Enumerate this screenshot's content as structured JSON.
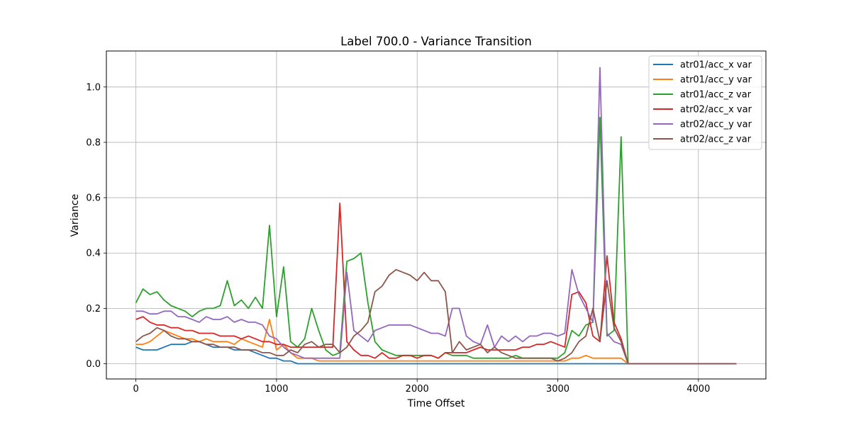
{
  "chart_data": {
    "type": "line",
    "title": "Label 700.0 - Variance Transition",
    "xlabel": "Time Offset",
    "ylabel": "Variance",
    "xlim": [
      -210,
      4480
    ],
    "ylim": [
      -0.055,
      1.13
    ],
    "xticks": [
      0,
      1000,
      2000,
      3000,
      4000
    ],
    "xtick_labels": [
      "0",
      "1000",
      "2000",
      "3000",
      "4000"
    ],
    "yticks": [
      0.0,
      0.2,
      0.4,
      0.6,
      0.8,
      1.0
    ],
    "ytick_labels": [
      "0.0",
      "0.2",
      "0.4",
      "0.6",
      "0.8",
      "1.0"
    ],
    "grid": true,
    "legend_position": "top-right",
    "x": [
      0,
      50,
      100,
      150,
      200,
      250,
      300,
      350,
      400,
      450,
      500,
      550,
      600,
      650,
      700,
      750,
      800,
      850,
      900,
      950,
      1000,
      1050,
      1100,
      1150,
      1200,
      1250,
      1300,
      1350,
      1400,
      1450,
      1500,
      1550,
      1600,
      1650,
      1700,
      1750,
      1800,
      1850,
      1900,
      1950,
      2000,
      2050,
      2100,
      2150,
      2200,
      2250,
      2300,
      2350,
      2400,
      2450,
      2500,
      2550,
      2600,
      2650,
      2700,
      2750,
      2800,
      2850,
      2900,
      2950,
      3000,
      3050,
      3100,
      3150,
      3200,
      3250,
      3300,
      3350,
      3400,
      3450,
      3500,
      3600,
      3700,
      3800,
      3900,
      4000,
      4100,
      4200,
      4270
    ],
    "series": [
      {
        "name": "atr01/acc_x var",
        "color": "#1f77b4",
        "values": [
          0.06,
          0.05,
          0.05,
          0.05,
          0.06,
          0.07,
          0.07,
          0.07,
          0.08,
          0.08,
          0.07,
          0.06,
          0.06,
          0.06,
          0.05,
          0.05,
          0.05,
          0.04,
          0.03,
          0.02,
          0.02,
          0.01,
          0.01,
          0.0,
          0.0,
          0.0,
          0.0,
          0.0,
          0.0,
          0.0,
          0.0,
          0.0,
          0.0,
          0.0,
          0.0,
          0.0,
          0.0,
          0.0,
          0.0,
          0.0,
          0.0,
          0.0,
          0.0,
          0.0,
          0.0,
          0.0,
          0.0,
          0.0,
          0.0,
          0.0,
          0.0,
          0.0,
          0.0,
          0.0,
          0.0,
          0.0,
          0.0,
          0.0,
          0.0,
          0.0,
          0.0,
          0.0,
          0.0,
          0.0,
          0.0,
          0.0,
          0.0,
          0.0,
          0.0,
          0.0,
          0.0,
          0.0,
          0.0,
          0.0,
          0.0,
          0.0,
          0.0,
          0.0,
          0.0
        ]
      },
      {
        "name": "atr01/acc_y var",
        "color": "#ff7f0e",
        "values": [
          0.07,
          0.07,
          0.08,
          0.1,
          0.12,
          0.11,
          0.1,
          0.09,
          0.09,
          0.08,
          0.09,
          0.08,
          0.08,
          0.08,
          0.07,
          0.09,
          0.08,
          0.07,
          0.06,
          0.16,
          0.05,
          0.07,
          0.04,
          0.02,
          0.02,
          0.02,
          0.01,
          0.01,
          0.01,
          0.01,
          0.01,
          0.01,
          0.01,
          0.01,
          0.01,
          0.01,
          0.01,
          0.01,
          0.01,
          0.01,
          0.01,
          0.01,
          0.01,
          0.01,
          0.01,
          0.01,
          0.01,
          0.01,
          0.01,
          0.01,
          0.01,
          0.01,
          0.01,
          0.01,
          0.01,
          0.01,
          0.01,
          0.01,
          0.01,
          0.01,
          0.01,
          0.01,
          0.02,
          0.02,
          0.03,
          0.02,
          0.02,
          0.02,
          0.02,
          0.02,
          0.0,
          0.0,
          0.0,
          0.0,
          0.0,
          0.0,
          0.0,
          0.0,
          0.0
        ]
      },
      {
        "name": "atr01/acc_z var",
        "color": "#2ca02c",
        "values": [
          0.22,
          0.27,
          0.25,
          0.26,
          0.23,
          0.21,
          0.2,
          0.19,
          0.17,
          0.19,
          0.2,
          0.2,
          0.21,
          0.3,
          0.21,
          0.23,
          0.2,
          0.24,
          0.2,
          0.5,
          0.17,
          0.35,
          0.08,
          0.06,
          0.09,
          0.2,
          0.12,
          0.05,
          0.03,
          0.04,
          0.37,
          0.38,
          0.4,
          0.22,
          0.08,
          0.05,
          0.04,
          0.03,
          0.03,
          0.03,
          0.03,
          0.03,
          0.03,
          0.02,
          0.04,
          0.03,
          0.03,
          0.03,
          0.02,
          0.02,
          0.02,
          0.02,
          0.02,
          0.02,
          0.03,
          0.02,
          0.02,
          0.02,
          0.02,
          0.02,
          0.02,
          0.04,
          0.12,
          0.1,
          0.14,
          0.15,
          0.89,
          0.1,
          0.12,
          0.82,
          0.0,
          0.0,
          0.0,
          0.0,
          0.0,
          0.0,
          0.0,
          0.0,
          0.0
        ]
      },
      {
        "name": "atr02/acc_x var",
        "color": "#d62728",
        "values": [
          0.16,
          0.17,
          0.15,
          0.14,
          0.14,
          0.13,
          0.13,
          0.12,
          0.12,
          0.11,
          0.11,
          0.11,
          0.1,
          0.1,
          0.1,
          0.09,
          0.1,
          0.09,
          0.08,
          0.08,
          0.07,
          0.07,
          0.06,
          0.06,
          0.06,
          0.06,
          0.06,
          0.06,
          0.06,
          0.58,
          0.08,
          0.05,
          0.03,
          0.03,
          0.02,
          0.04,
          0.02,
          0.02,
          0.03,
          0.03,
          0.02,
          0.03,
          0.03,
          0.02,
          0.04,
          0.04,
          0.04,
          0.04,
          0.05,
          0.06,
          0.05,
          0.05,
          0.05,
          0.05,
          0.05,
          0.06,
          0.06,
          0.07,
          0.07,
          0.08,
          0.07,
          0.06,
          0.25,
          0.26,
          0.22,
          0.1,
          0.08,
          0.39,
          0.15,
          0.09,
          0.0,
          0.0,
          0.0,
          0.0,
          0.0,
          0.0,
          0.0,
          0.0,
          0.0
        ]
      },
      {
        "name": "atr02/acc_y var",
        "color": "#9467bd",
        "values": [
          0.19,
          0.19,
          0.18,
          0.18,
          0.19,
          0.19,
          0.17,
          0.17,
          0.16,
          0.15,
          0.17,
          0.16,
          0.16,
          0.17,
          0.15,
          0.16,
          0.15,
          0.15,
          0.14,
          0.1,
          0.09,
          0.06,
          0.04,
          0.03,
          0.02,
          0.02,
          0.02,
          0.02,
          0.02,
          0.02,
          0.33,
          0.12,
          0.1,
          0.08,
          0.12,
          0.13,
          0.14,
          0.14,
          0.14,
          0.14,
          0.13,
          0.12,
          0.11,
          0.11,
          0.1,
          0.2,
          0.2,
          0.1,
          0.08,
          0.07,
          0.14,
          0.06,
          0.1,
          0.08,
          0.1,
          0.08,
          0.1,
          0.1,
          0.11,
          0.11,
          0.1,
          0.11,
          0.34,
          0.25,
          0.2,
          0.15,
          1.07,
          0.11,
          0.08,
          0.07,
          0.0,
          0.0,
          0.0,
          0.0,
          0.0,
          0.0,
          0.0,
          0.0,
          0.0
        ]
      },
      {
        "name": "atr02/acc_z var",
        "color": "#8c564b",
        "values": [
          0.08,
          0.1,
          0.11,
          0.13,
          0.12,
          0.1,
          0.09,
          0.09,
          0.08,
          0.08,
          0.07,
          0.07,
          0.06,
          0.06,
          0.06,
          0.05,
          0.05,
          0.05,
          0.04,
          0.04,
          0.03,
          0.03,
          0.05,
          0.04,
          0.07,
          0.08,
          0.06,
          0.07,
          0.07,
          0.04,
          0.06,
          0.1,
          0.12,
          0.15,
          0.26,
          0.28,
          0.32,
          0.34,
          0.33,
          0.32,
          0.3,
          0.33,
          0.3,
          0.3,
          0.26,
          0.04,
          0.08,
          0.05,
          0.06,
          0.07,
          0.04,
          0.06,
          0.04,
          0.03,
          0.02,
          0.02,
          0.02,
          0.02,
          0.02,
          0.02,
          0.01,
          0.02,
          0.04,
          0.08,
          0.1,
          0.2,
          0.08,
          0.3,
          0.13,
          0.08,
          0.0,
          0.0,
          0.0,
          0.0,
          0.0,
          0.0,
          0.0,
          0.0,
          0.0
        ]
      }
    ]
  }
}
